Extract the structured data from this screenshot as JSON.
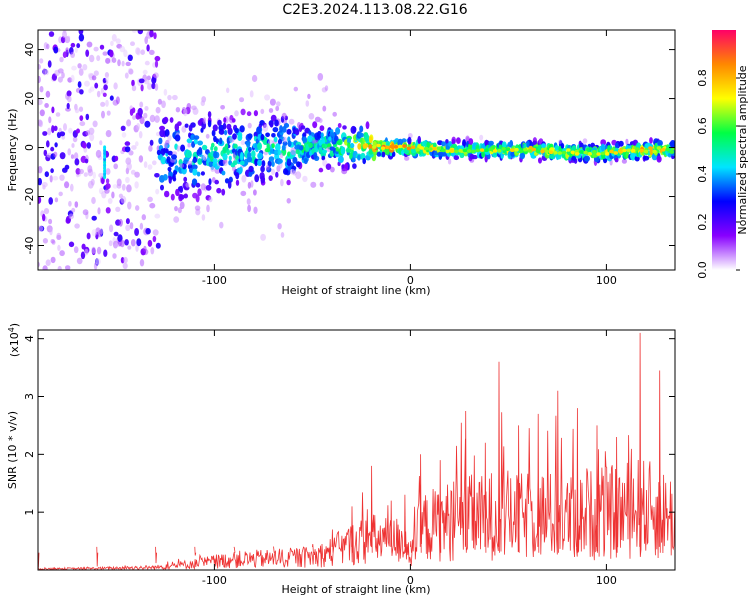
{
  "title": "C2E3.2024.113.08.22.G16",
  "chart_data": [
    {
      "type": "heatmap",
      "xlabel": "Height of straight line (km)",
      "ylabel": "Frequency (Hz)",
      "xlim": [
        -190,
        135
      ],
      "ylim": [
        -50,
        48
      ],
      "xticks": [
        -100,
        0,
        100
      ],
      "yticks": [
        -40,
        -20,
        0,
        20,
        40
      ],
      "colorbar": {
        "label": "Normalized spectral amplitude",
        "range": [
          0,
          1
        ],
        "ticks": [
          0.0,
          0.2,
          0.4,
          0.6,
          0.8
        ],
        "colors": [
          "#ffffff",
          "#8800ff",
          "#0000ff",
          "#00e5ff",
          "#00ff44",
          "#ffff00",
          "#ff8800",
          "#ff0066"
        ]
      },
      "ridge": [
        {
          "x": -160,
          "y": -6,
          "amp": 0.35
        },
        {
          "x": -140,
          "y": -5,
          "amp": 0.4
        },
        {
          "x": -120,
          "y": -4,
          "amp": 0.45
        },
        {
          "x": -100,
          "y": -2,
          "amp": 0.5
        },
        {
          "x": -80,
          "y": -1,
          "amp": 0.5
        },
        {
          "x": -60,
          "y": 0,
          "amp": 0.55
        },
        {
          "x": -40,
          "y": 1,
          "amp": 0.55
        },
        {
          "x": -20,
          "y": 0,
          "amp": 0.85
        },
        {
          "x": 0,
          "y": 0,
          "amp": 0.8
        },
        {
          "x": 20,
          "y": -1,
          "amp": 0.7
        },
        {
          "x": 40,
          "y": -1,
          "amp": 0.7
        },
        {
          "x": 60,
          "y": -1,
          "amp": 0.75
        },
        {
          "x": 80,
          "y": -2,
          "amp": 0.7
        },
        {
          "x": 100,
          "y": -2,
          "amp": 0.7
        },
        {
          "x": 120,
          "y": -1,
          "amp": 0.8
        },
        {
          "x": 135,
          "y": -1,
          "amp": 0.7
        }
      ]
    },
    {
      "type": "line",
      "xlabel": "Height of straight line (km)",
      "ylabel": "SNR (10 * v/v)",
      "yscale_label": "(x10",
      "yscale_exp": "4",
      "xlim": [
        -190,
        135
      ],
      "ylim": [
        0,
        4.15
      ],
      "xticks": [
        -100,
        0,
        100
      ],
      "yticks": [
        1,
        2,
        3,
        4
      ],
      "color": "#ee3333",
      "envelope": [
        {
          "x": -190,
          "mean": 0.02,
          "peak": 0.04
        },
        {
          "x": -160,
          "mean": 0.03,
          "peak": 0.06
        },
        {
          "x": -130,
          "mean": 0.05,
          "peak": 0.12
        },
        {
          "x": -110,
          "mean": 0.12,
          "peak": 0.25
        },
        {
          "x": -90,
          "mean": 0.2,
          "peak": 0.38
        },
        {
          "x": -70,
          "mean": 0.22,
          "peak": 0.4
        },
        {
          "x": -50,
          "mean": 0.25,
          "peak": 0.45
        },
        {
          "x": -40,
          "mean": 0.35,
          "peak": 0.7
        },
        {
          "x": -30,
          "mean": 0.5,
          "peak": 1.1
        },
        {
          "x": -20,
          "mean": 0.6,
          "peak": 1.8
        },
        {
          "x": -10,
          "mean": 0.55,
          "peak": 1.2
        },
        {
          "x": -3,
          "mean": 0.6,
          "peak": 1.3
        },
        {
          "x": 0,
          "mean": 0.2,
          "peak": 0.5
        },
        {
          "x": 5,
          "mean": 0.8,
          "peak": 2.0
        },
        {
          "x": 15,
          "mean": 0.9,
          "peak": 1.9
        },
        {
          "x": 28,
          "mean": 1.0,
          "peak": 2.75
        },
        {
          "x": 38,
          "mean": 1.0,
          "peak": 2.2
        },
        {
          "x": 45,
          "mean": 1.1,
          "peak": 3.6
        },
        {
          "x": 55,
          "mean": 1.0,
          "peak": 2.5
        },
        {
          "x": 65,
          "mean": 1.1,
          "peak": 2.7
        },
        {
          "x": 75,
          "mean": 1.0,
          "peak": 3.1
        },
        {
          "x": 85,
          "mean": 1.0,
          "peak": 2.8
        },
        {
          "x": 95,
          "mean": 1.1,
          "peak": 2.5
        },
        {
          "x": 105,
          "mean": 1.1,
          "peak": 2.3
        },
        {
          "x": 117,
          "mean": 1.2,
          "peak": 4.1
        },
        {
          "x": 127,
          "mean": 1.1,
          "peak": 3.45
        },
        {
          "x": 135,
          "mean": 1.0,
          "peak": 3.3
        }
      ]
    }
  ]
}
